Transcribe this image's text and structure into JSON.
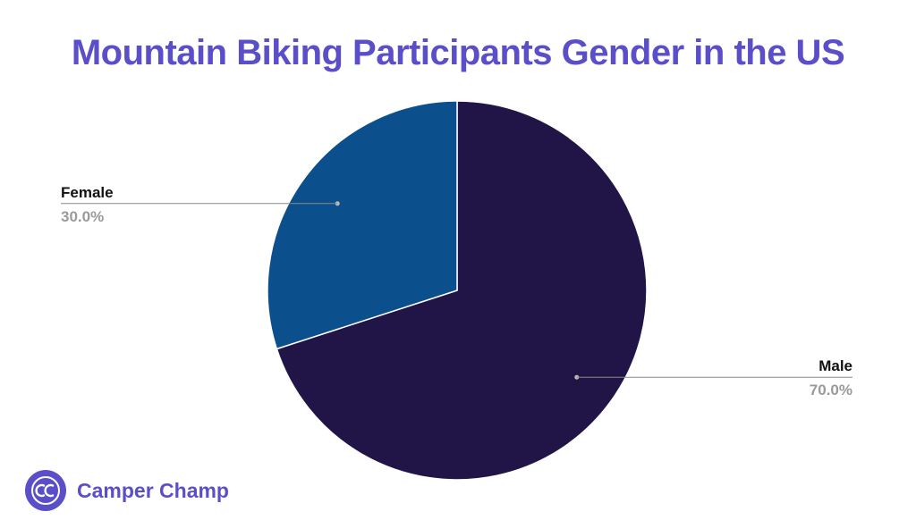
{
  "chart_data": {
    "type": "pie",
    "title": "Mountain Biking Participants Gender in the US",
    "start_angle_deg": 0,
    "direction": "clockwise",
    "slices": [
      {
        "label": "Male",
        "value": 70.0,
        "value_label": "70.0%",
        "color": "#211548"
      },
      {
        "label": "Female",
        "value": 30.0,
        "value_label": "30.0%",
        "color": "#0c4f8d"
      }
    ],
    "legend": "none"
  },
  "brand": {
    "name": "Camper Champ",
    "logo_icon": "cc-circle-logo",
    "color": "#5a4fc9"
  }
}
